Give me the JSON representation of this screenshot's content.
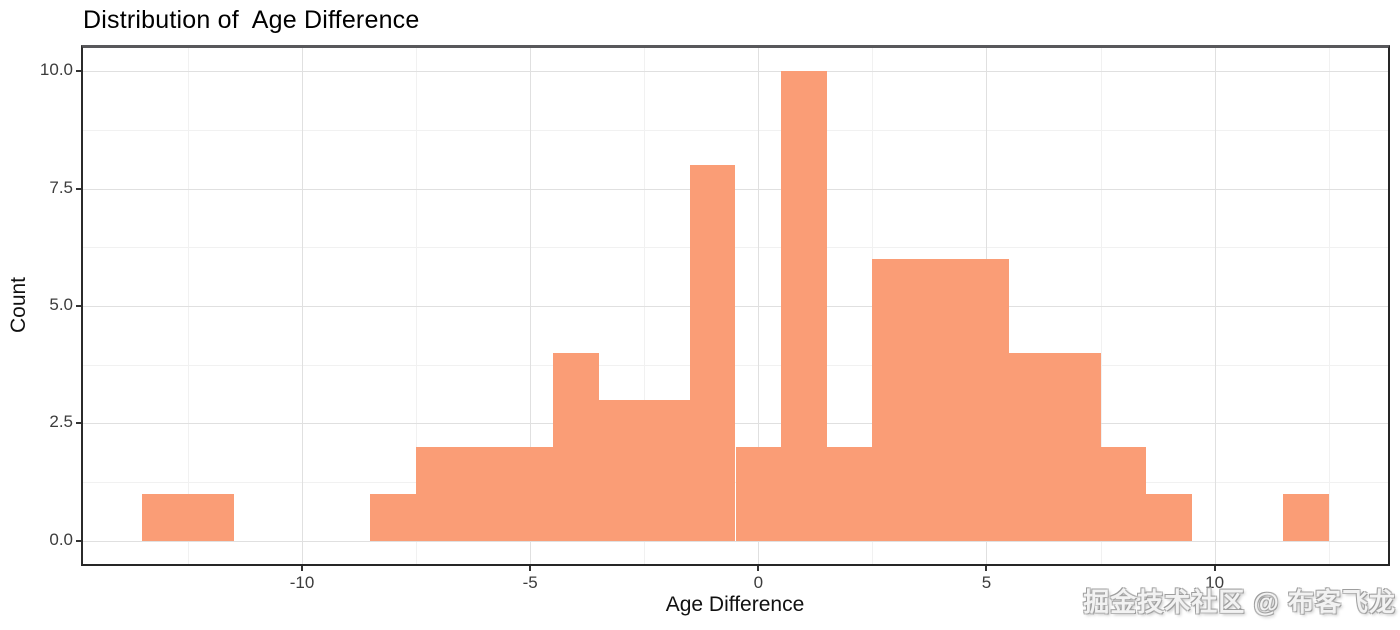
{
  "chart_data": {
    "type": "bar",
    "subtype": "histogram",
    "title": "Distribution of  Age Difference",
    "xlabel": "Age Difference",
    "ylabel": "Count",
    "bar_color": "#FA9D76",
    "bin_width": 1,
    "bins": [
      {
        "center": -13,
        "count": 1
      },
      {
        "center": -12,
        "count": 1
      },
      {
        "center": -11,
        "count": 0
      },
      {
        "center": -10,
        "count": 0
      },
      {
        "center": -9,
        "count": 0
      },
      {
        "center": -8,
        "count": 1
      },
      {
        "center": -7,
        "count": 2
      },
      {
        "center": -6,
        "count": 2
      },
      {
        "center": -5,
        "count": 2
      },
      {
        "center": -4,
        "count": 4
      },
      {
        "center": -3,
        "count": 3
      },
      {
        "center": -2,
        "count": 3
      },
      {
        "center": -1,
        "count": 8
      },
      {
        "center": 0,
        "count": 2
      },
      {
        "center": 1,
        "count": 10
      },
      {
        "center": 2,
        "count": 2
      },
      {
        "center": 3,
        "count": 6
      },
      {
        "center": 4,
        "count": 6
      },
      {
        "center": 5,
        "count": 6
      },
      {
        "center": 6,
        "count": 4
      },
      {
        "center": 7,
        "count": 4
      },
      {
        "center": 8,
        "count": 2
      },
      {
        "center": 9,
        "count": 1
      },
      {
        "center": 10,
        "count": 0
      },
      {
        "center": 11,
        "count": 0
      },
      {
        "center": 12,
        "count": 1
      }
    ],
    "xlim": [
      -14.8,
      13.8
    ],
    "ylim": [
      -0.5,
      10.5
    ],
    "x_ticks": [
      {
        "value": -10,
        "label": "-10"
      },
      {
        "value": -5,
        "label": "-5"
      },
      {
        "value": 0,
        "label": "0"
      },
      {
        "value": 5,
        "label": "5"
      },
      {
        "value": 10,
        "label": "10"
      }
    ],
    "y_ticks": [
      {
        "value": 0,
        "label": "0.0"
      },
      {
        "value": 2.5,
        "label": "2.5"
      },
      {
        "value": 5,
        "label": "5.0"
      },
      {
        "value": 7.5,
        "label": "7.5"
      },
      {
        "value": 10,
        "label": "10.0"
      }
    ],
    "x_minor_ticks": [
      -12.5,
      -7.5,
      -2.5,
      2.5,
      7.5,
      12.5
    ],
    "y_minor_ticks": [
      1.25,
      3.75,
      6.25,
      8.75
    ],
    "grid": {
      "major_color": "#e0e0e0",
      "minor_color": "#f1f1f1"
    },
    "legend": "none"
  },
  "watermark": {
    "text": "掘金技术社区 @ 布客飞龙"
  }
}
